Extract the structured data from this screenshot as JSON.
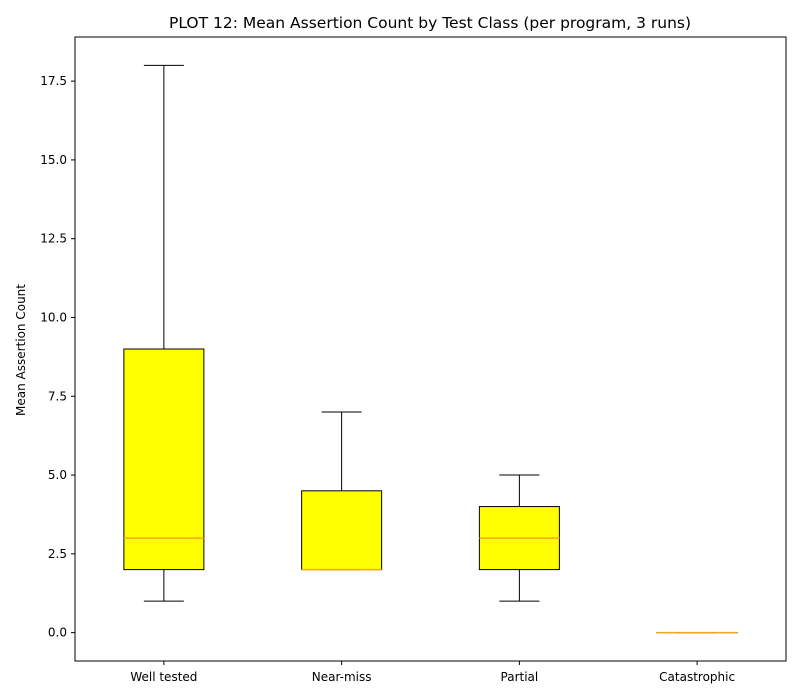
{
  "chart_data": {
    "type": "box",
    "title": "PLOT 12: Mean Assertion Count by Test Class (per program, 3 runs)",
    "xlabel": "",
    "ylabel": "Mean Assertion Count",
    "ylim": [
      -0.9,
      18.9
    ],
    "yticks": [
      "0.0",
      "2.5",
      "5.0",
      "7.5",
      "10.0",
      "12.5",
      "15.0",
      "17.5"
    ],
    "ytick_values": [
      0,
      2.5,
      5,
      7.5,
      10,
      12.5,
      15,
      17.5
    ],
    "categories": [
      "Well tested",
      "Near-miss",
      "Partial",
      "Catastrophic"
    ],
    "boxes": [
      {
        "category": "Well tested",
        "whisker_low": 1,
        "q1": 2,
        "median": 3,
        "q3": 9,
        "whisker_high": 18
      },
      {
        "category": "Near-miss",
        "whisker_low": 2,
        "q1": 2,
        "median": 2,
        "q3": 4.5,
        "whisker_high": 7
      },
      {
        "category": "Partial",
        "whisker_low": 1,
        "q1": 2,
        "median": 3,
        "q3": 4,
        "whisker_high": 5
      },
      {
        "category": "Catastrophic",
        "whisker_low": 0,
        "q1": 0,
        "median": 0,
        "q3": 0,
        "whisker_high": 0
      }
    ],
    "box_color": "#ffff00",
    "median_color": "#f5a623",
    "grid": false,
    "legend": "none"
  }
}
